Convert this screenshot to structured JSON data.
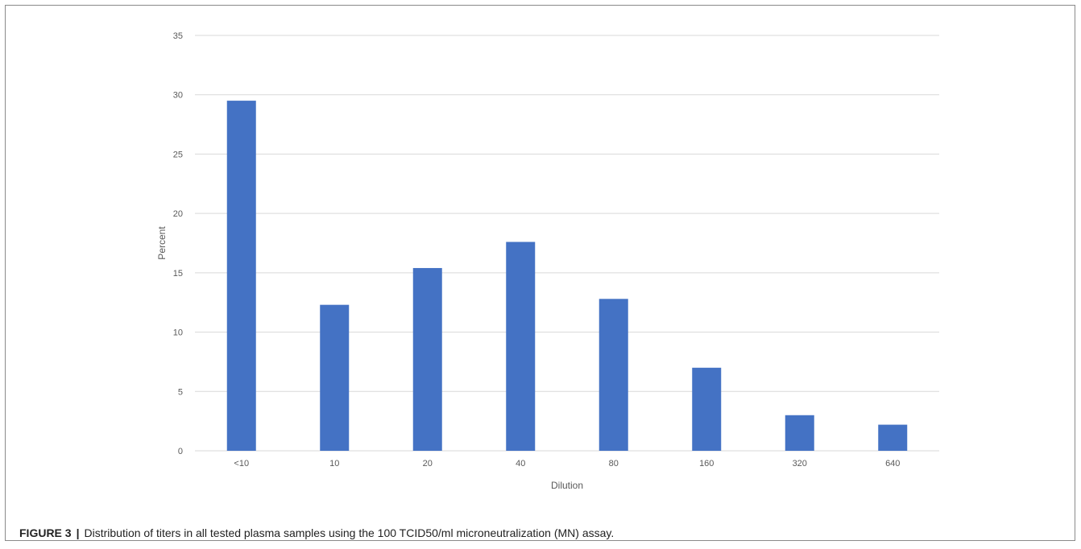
{
  "chart_data": {
    "type": "bar",
    "categories": [
      "<10",
      "10",
      "20",
      "40",
      "80",
      "160",
      "320",
      "640"
    ],
    "values": [
      29.5,
      12.3,
      15.4,
      17.6,
      12.8,
      7.0,
      3.0,
      2.2
    ],
    "xlabel": "Dilution",
    "ylabel": "Percent",
    "ylim": [
      0,
      35
    ],
    "yticks": [
      0,
      5,
      10,
      15,
      20,
      25,
      30,
      35
    ],
    "grid": true,
    "legend": "none",
    "bar_color": "#4472C4",
    "grid_color": "#D9D9D9"
  },
  "caption": {
    "label": "FIGURE 3",
    "separator": "|",
    "text": "Distribution of titers in all tested plasma samples using the 100 TCID50/ml microneutralization (MN) assay."
  }
}
